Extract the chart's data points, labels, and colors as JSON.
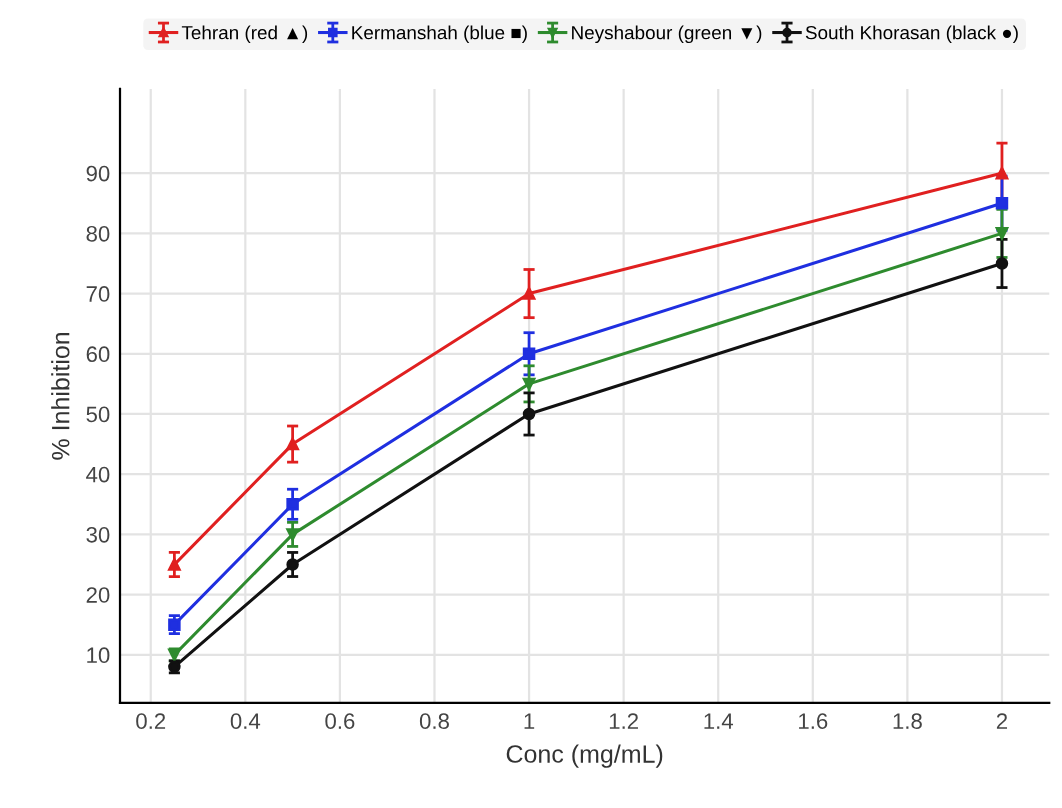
{
  "chart_data": {
    "type": "line",
    "xlabel": "Conc (mg/mL)",
    "ylabel": "% Inhibition",
    "x": [
      0.25,
      0.5,
      1,
      2
    ],
    "series": [
      {
        "name": "Tehran (red ▲)",
        "color": "#e02020",
        "marker": "triangle",
        "values": [
          25,
          45,
          70,
          90
        ],
        "errors": [
          2,
          3,
          4,
          5
        ]
      },
      {
        "name": "Kermanshah (blue ■)",
        "color": "#1f2fe0",
        "marker": "square",
        "values": [
          15,
          35,
          60,
          85
        ],
        "errors": [
          1.5,
          2.5,
          3.5,
          4.5
        ]
      },
      {
        "name": "Neyshabour (green ▼)",
        "color": "#2e8b2e",
        "marker": "triangle_down",
        "values": [
          10,
          30,
          55,
          80
        ],
        "errors": [
          1,
          2,
          3,
          4
        ]
      },
      {
        "name": "South Khorasan (black ●)",
        "color": "#111111",
        "marker": "circle",
        "values": [
          8,
          25,
          50,
          75
        ],
        "errors": [
          1,
          2,
          3.5,
          4
        ]
      }
    ],
    "xlim": [
      0.135,
      2.1
    ],
    "xticks": [
      0.2,
      0.4,
      0.6,
      0.8,
      1,
      1.2,
      1.4,
      1.6,
      1.8,
      2
    ],
    "ylim": [
      2,
      104
    ],
    "yticks": [
      10,
      20,
      30,
      40,
      50,
      60,
      70,
      80,
      90
    ],
    "grid": true,
    "legend": "top",
    "line_style": "solid"
  }
}
